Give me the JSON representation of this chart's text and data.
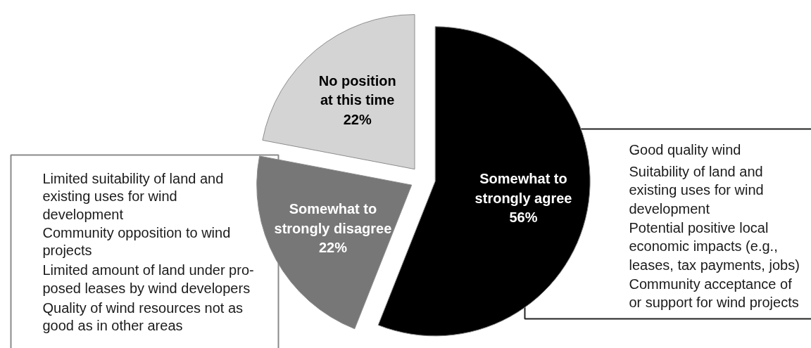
{
  "chart_data": {
    "type": "pie",
    "categories": [
      "Somewhat to strongly agree",
      "Somewhat to strongly disagree",
      "No position at this time"
    ],
    "values": [
      56,
      22,
      22
    ],
    "colors": [
      "#000000",
      "#777777",
      "#d4d4d4"
    ],
    "value_labels": [
      "56%",
      "22%",
      "22%"
    ],
    "annotations": [
      "Limited suitability of land and\nexisting uses for wind\ndevelopment",
      "Community opposition to wind\nprojects",
      "Limited amount of land under pro-\nposed leases by wind developers",
      "Quality of wind resources not as\ngood as in other areas",
      "Good quality wind",
      "Suitability of land and\nexisting uses for wind\ndevelopment",
      "Potential positive local\neconomic impacts (e.g.,\nleases, tax payments, jobs)",
      "Community acceptance of\nor support for wind projects"
    ]
  }
}
